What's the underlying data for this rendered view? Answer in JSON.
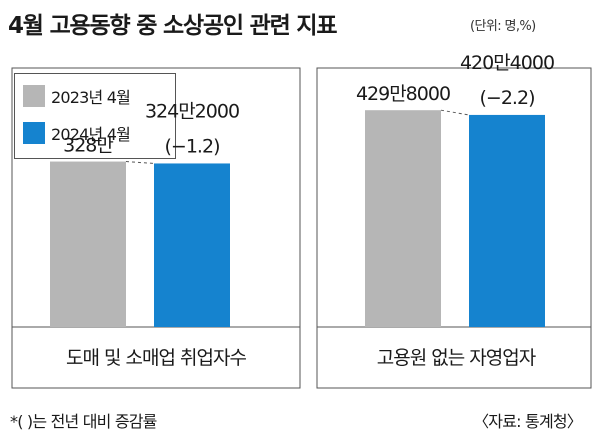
{
  "title": "4월 고용동향 중 소상공인 관련 지표",
  "unit": "(단위: 명,%)",
  "legend": [
    {
      "label": "2023년 4월",
      "color": "#b6b6b6"
    },
    {
      "label": "2024년 4월",
      "color": "#1583cf"
    }
  ],
  "chart_data": {
    "type": "bar",
    "categories": [
      "도매 및 소매업 취업자수",
      "고용원 없는 자영업자"
    ],
    "series": [
      {
        "name": "2023년 4월",
        "values": [
          3280000,
          4298000
        ],
        "labels": [
          "328만",
          "429만8000"
        ]
      },
      {
        "name": "2024년 4월",
        "values": [
          3242000,
          4204000
        ],
        "labels": [
          "324만2000",
          "420만4000"
        ],
        "change_labels": [
          "(−1.2)",
          "(−2.2)"
        ]
      }
    ],
    "ylim": [
      0,
      4500000
    ]
  },
  "footnote": "*(  )는 전년 대비 증감률",
  "source": "〈자료: 통계청〉"
}
